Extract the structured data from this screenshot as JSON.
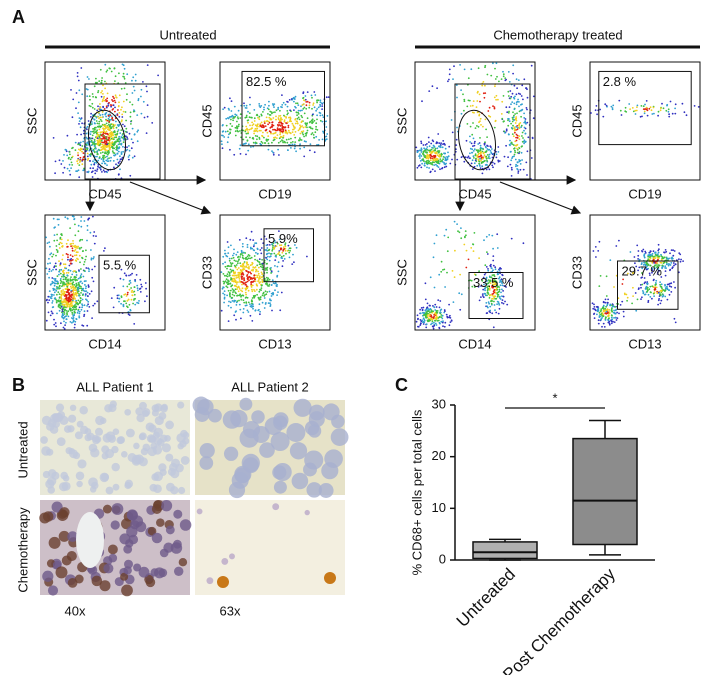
{
  "panel_a": {
    "letter": "A",
    "groups": [
      {
        "title": "Untreated",
        "plots": [
          {
            "x_label": "CD45",
            "y_label": "SSC"
          },
          {
            "x_label": "CD19",
            "y_label": "CD45",
            "gate": "82.5 %"
          },
          {
            "x_label": "CD14",
            "y_label": "SSC",
            "gate": "5.5 %"
          },
          {
            "x_label": "CD13",
            "y_label": "CD33",
            "gate": "5.9%"
          }
        ]
      },
      {
        "title": "Chemotherapy treated",
        "plots": [
          {
            "x_label": "CD45",
            "y_label": "SSC"
          },
          {
            "x_label": "CD19",
            "y_label": "CD45",
            "gate": "2.8 %"
          },
          {
            "x_label": "CD14",
            "y_label": "SSC",
            "gate": "33.5 %"
          },
          {
            "x_label": "CD13",
            "y_label": "CD33",
            "gate": "29.7 %"
          }
        ]
      }
    ]
  },
  "panel_b": {
    "letter": "B",
    "columns": [
      "ALL Patient 1",
      "ALL Patient  2"
    ],
    "rows": [
      "Untreated",
      "Chemotherapy"
    ],
    "magnifications": [
      "40x",
      "63x"
    ]
  },
  "chart_data": {
    "type": "box",
    "letter": "C",
    "y_label": "% CD68+ cells per total cells",
    "categories": [
      "Untreated",
      "Post Chemotherapy"
    ],
    "min": [
      0,
      1
    ],
    "q1": [
      0.3,
      3
    ],
    "median": [
      1.5,
      11.5
    ],
    "q3": [
      3.5,
      23.5
    ],
    "max": [
      4,
      27
    ],
    "colors": [
      "#b0b0b0",
      "#8c8c8c"
    ],
    "ylim": [
      0,
      30
    ],
    "yticks": [
      0,
      10,
      20,
      30
    ],
    "annotation": "*"
  }
}
